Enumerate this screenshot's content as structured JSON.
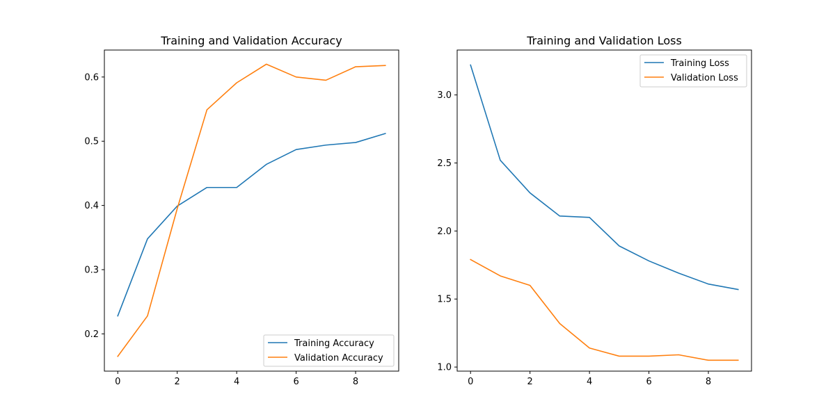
{
  "colors": {
    "series_0": "#1f77b4",
    "series_1": "#ff7f0e"
  },
  "chart_data": [
    {
      "type": "line",
      "title": "Training and Validation Accuracy",
      "xlabel": "",
      "ylabel": "",
      "x": [
        0,
        1,
        2,
        3,
        4,
        5,
        6,
        7,
        8,
        9
      ],
      "xlim": [
        -0.45,
        9.45
      ],
      "ylim": [
        0.142,
        0.642
      ],
      "xticks": [
        0,
        2,
        4,
        6,
        8
      ],
      "xtick_labels": [
        "0",
        "2",
        "4",
        "6",
        "8"
      ],
      "yticks": [
        0.2,
        0.3,
        0.4,
        0.5,
        0.6
      ],
      "ytick_labels": [
        "0.2",
        "0.3",
        "0.4",
        "0.5",
        "0.6"
      ],
      "legend_position": "lower-right",
      "series": [
        {
          "name": "Training Accuracy",
          "values": [
            0.228,
            0.348,
            0.399,
            0.428,
            0.428,
            0.464,
            0.487,
            0.494,
            0.498,
            0.512
          ]
        },
        {
          "name": "Validation Accuracy",
          "values": [
            0.165,
            0.228,
            0.395,
            0.549,
            0.591,
            0.62,
            0.6,
            0.595,
            0.616,
            0.618
          ]
        }
      ]
    },
    {
      "type": "line",
      "title": "Training and Validation Loss",
      "xlabel": "",
      "ylabel": "",
      "x": [
        0,
        1,
        2,
        3,
        4,
        5,
        6,
        7,
        8,
        9
      ],
      "xlim": [
        -0.45,
        9.45
      ],
      "ylim": [
        0.97,
        3.33
      ],
      "xticks": [
        0,
        2,
        4,
        6,
        8
      ],
      "xtick_labels": [
        "0",
        "2",
        "4",
        "6",
        "8"
      ],
      "yticks": [
        1.0,
        1.5,
        2.0,
        2.5,
        3.0
      ],
      "ytick_labels": [
        "1.0",
        "1.5",
        "2.0",
        "2.5",
        "3.0"
      ],
      "legend_position": "upper-right",
      "series": [
        {
          "name": "Training Loss",
          "values": [
            3.22,
            2.52,
            2.28,
            2.11,
            2.1,
            1.89,
            1.78,
            1.69,
            1.61,
            1.57
          ]
        },
        {
          "name": "Validation Loss",
          "values": [
            1.79,
            1.67,
            1.6,
            1.32,
            1.14,
            1.08,
            1.08,
            1.09,
            1.05,
            1.05
          ]
        }
      ]
    }
  ]
}
